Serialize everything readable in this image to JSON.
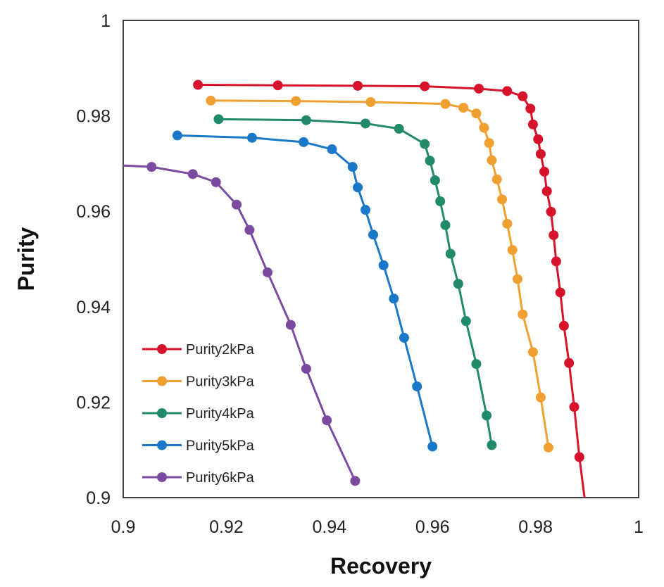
{
  "chart_data": {
    "type": "line",
    "title": "",
    "xlabel": "Recovery",
    "ylabel": "Purity",
    "xlim": [
      0.9,
      1.0
    ],
    "ylim": [
      0.9,
      1.0
    ],
    "x_ticks": [
      "0.9",
      "0.92",
      "0.94",
      "0.96",
      "0.98",
      "1"
    ],
    "y_ticks": [
      "0.9",
      "0.92",
      "0.94",
      "0.96",
      "0.98",
      "1"
    ],
    "x_tick_values": [
      0.9,
      0.92,
      0.94,
      0.96,
      0.98,
      1.0
    ],
    "y_tick_values": [
      0.9,
      0.92,
      0.94,
      0.96,
      0.98,
      1.0
    ],
    "grid": false,
    "legend_position": "bottom-left",
    "series": [
      {
        "name": "Purity2kPa",
        "color": "#d7122b",
        "x": [
          0.9145,
          0.93,
          0.9455,
          0.9585,
          0.969,
          0.9745,
          0.9775,
          0.979,
          0.9795,
          0.9805,
          0.981,
          0.9817,
          0.9822,
          0.983,
          0.9835,
          0.984,
          0.9848,
          0.9855,
          0.9865,
          0.9875,
          0.9885
        ],
        "y": [
          0.9865,
          0.9864,
          0.9863,
          0.9862,
          0.9857,
          0.9852,
          0.9841,
          0.9815,
          0.9782,
          0.9751,
          0.972,
          0.9683,
          0.9642,
          0.9599,
          0.955,
          0.9495,
          0.943,
          0.936,
          0.9282,
          0.919,
          0.9085
        ],
        "x_extension_end": 0.9895,
        "y_extension_end": 0.9
      },
      {
        "name": "Purity3kPa",
        "color": "#f0a030",
        "x": [
          0.917,
          0.9335,
          0.948,
          0.9625,
          0.966,
          0.9685,
          0.97,
          0.971,
          0.9715,
          0.9725,
          0.9735,
          0.9745,
          0.9755,
          0.9765,
          0.9775,
          0.9795,
          0.981,
          0.9825
        ],
        "y": [
          0.9832,
          0.9831,
          0.9829,
          0.9825,
          0.9817,
          0.9805,
          0.9775,
          0.9743,
          0.9707,
          0.9667,
          0.9625,
          0.9574,
          0.9519,
          0.9458,
          0.9384,
          0.9305,
          0.921,
          0.9105
        ]
      },
      {
        "name": "Purity4kPa",
        "color": "#218a6a",
        "x": [
          0.9185,
          0.9355,
          0.947,
          0.9535,
          0.9585,
          0.9595,
          0.9605,
          0.9615,
          0.9625,
          0.9635,
          0.965,
          0.9665,
          0.9685,
          0.9705,
          0.9715
        ],
        "y": [
          0.9793,
          0.9791,
          0.9784,
          0.9773,
          0.9741,
          0.9706,
          0.9665,
          0.9621,
          0.9571,
          0.9511,
          0.9448,
          0.937,
          0.928,
          0.9172,
          0.911
        ]
      },
      {
        "name": "Purity5kPa",
        "color": "#1a78c8",
        "x": [
          0.9105,
          0.925,
          0.935,
          0.9405,
          0.9445,
          0.9455,
          0.947,
          0.9485,
          0.9505,
          0.9525,
          0.9545,
          0.957,
          0.96
        ],
        "y": [
          0.9759,
          0.9754,
          0.9745,
          0.973,
          0.9693,
          0.965,
          0.9603,
          0.9551,
          0.9487,
          0.9417,
          0.9335,
          0.9233,
          0.9107
        ]
      },
      {
        "name": "Purity6kPa",
        "color": "#7a4aa0",
        "x": [
          0.9055,
          0.9135,
          0.918,
          0.922,
          0.9245,
          0.928,
          0.9325,
          0.9355,
          0.9395,
          0.945
        ],
        "y": [
          0.9693,
          0.9678,
          0.9661,
          0.9614,
          0.9561,
          0.9472,
          0.9362,
          0.927,
          0.9162,
          0.9035
        ],
        "x_extension_start": 0.9,
        "y_extension_start": 0.9696
      }
    ]
  }
}
